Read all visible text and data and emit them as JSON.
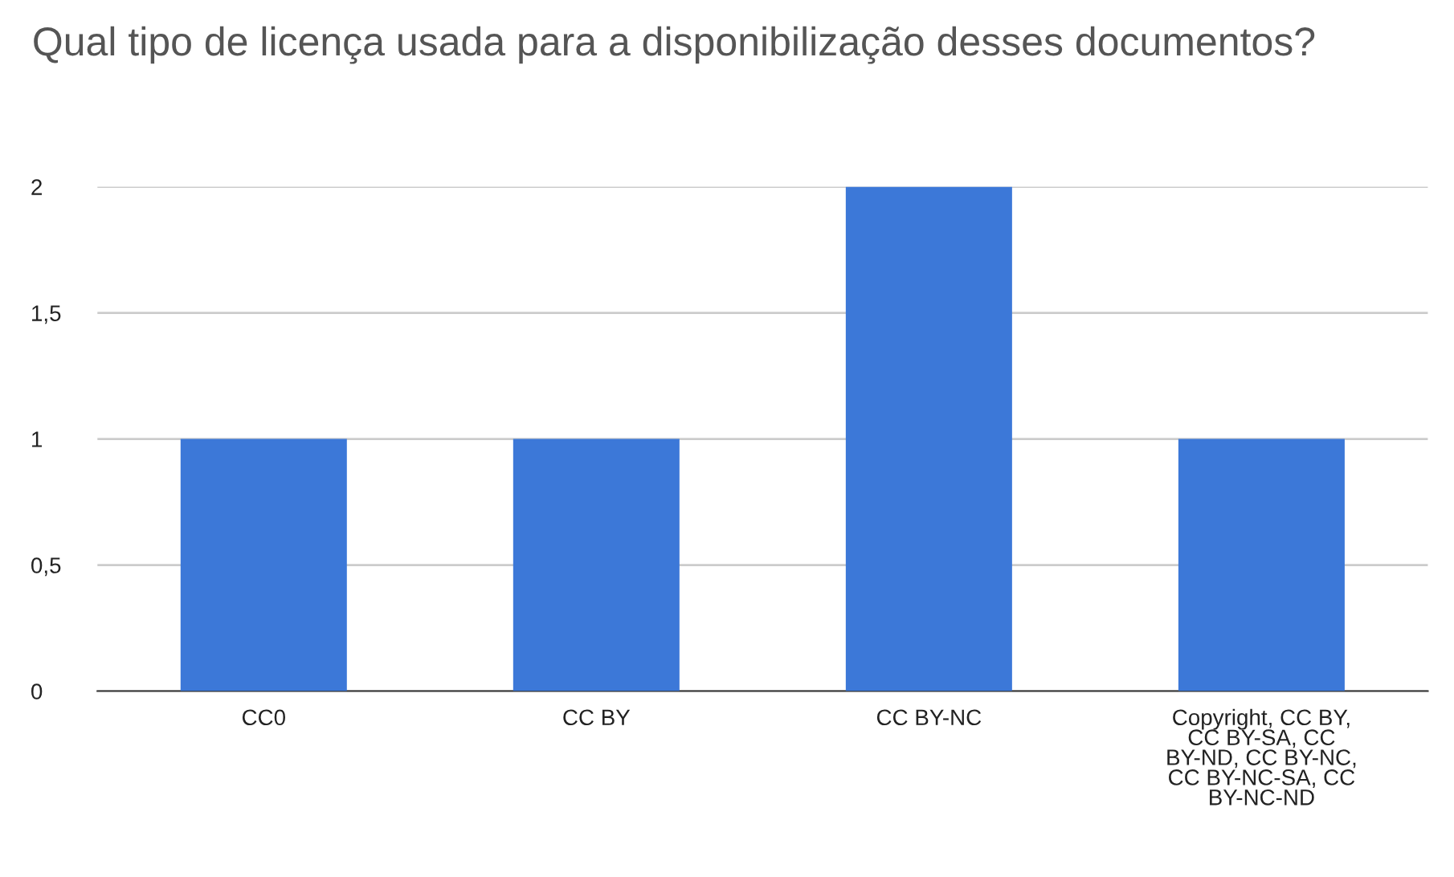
{
  "chart_data": {
    "type": "bar",
    "title": "Qual tipo de licença usada para a disponibilização desses documentos?",
    "categories": [
      "CC0",
      "CC BY",
      "CC BY-NC",
      "Copyright, CC BY,\nCC BY-SA, CC\nBY-ND, CC BY-NC,\nCC BY-NC-SA, CC\nBY-NC-ND"
    ],
    "values": [
      1,
      1,
      2,
      1
    ],
    "color": "#3c78d8",
    "ylim": [
      0,
      2
    ],
    "yticks": [
      0,
      {
        "value": 0.5,
        "label": "0,5"
      },
      1,
      {
        "value": 1.5,
        "label": "1,5"
      },
      2
    ],
    "grid": "y"
  }
}
